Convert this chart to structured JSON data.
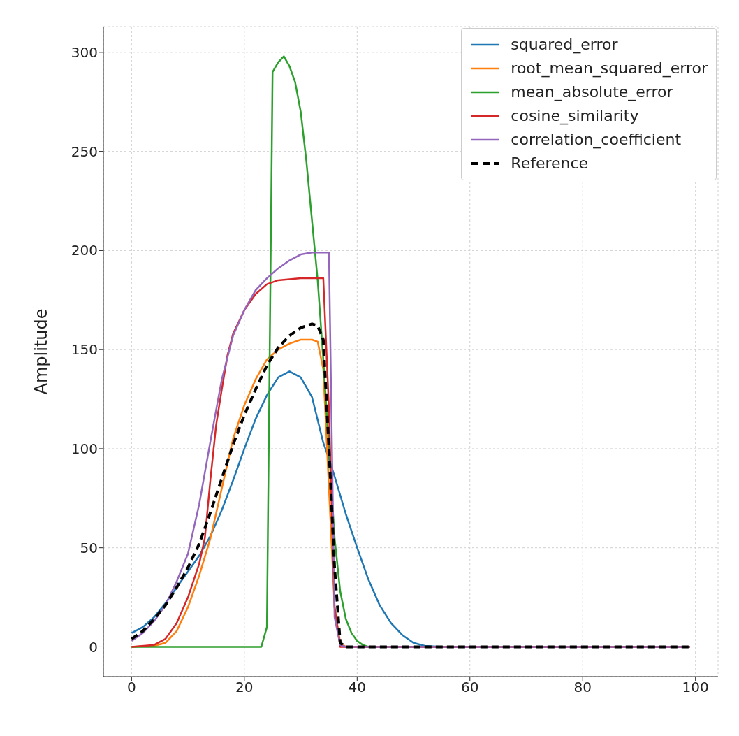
{
  "chart_data": {
    "type": "line",
    "ylabel": "Amplitude",
    "xlim": [
      -5,
      104
    ],
    "ylim": [
      -15,
      313
    ],
    "xticks": [
      0,
      20,
      40,
      60,
      80,
      100
    ],
    "yticks": [
      0,
      50,
      100,
      150,
      200,
      250,
      300
    ],
    "grid": true,
    "legend": "top right",
    "marker": "none",
    "series": [
      {
        "name": "squared_error",
        "color": "#1f77b4",
        "line_style": "solid",
        "x": [
          0,
          2,
          4,
          6,
          8,
          10,
          12,
          14,
          16,
          18,
          20,
          22,
          24,
          26,
          28,
          30,
          32,
          34,
          35,
          36,
          38,
          40,
          42,
          44,
          46,
          48,
          50,
          52,
          55,
          99
        ],
        "values": [
          7,
          10,
          15,
          22,
          30,
          38,
          46,
          56,
          69,
          84,
          100,
          115,
          127,
          136,
          139,
          136,
          126,
          103,
          95,
          86,
          67,
          50,
          34,
          21,
          12,
          6,
          2,
          0.5,
          0,
          0
        ]
      },
      {
        "name": "root_mean_squared_error",
        "color": "#ff7f0e",
        "line_style": "solid",
        "x": [
          0,
          4,
          6,
          8,
          10,
          12,
          14,
          16,
          18,
          20,
          22,
          24,
          26,
          28,
          30,
          32,
          33,
          34,
          35,
          36,
          37,
          38,
          99
        ],
        "values": [
          0,
          0.5,
          2,
          8,
          20,
          36,
          55,
          80,
          105,
          122,
          135,
          145,
          150,
          153,
          155,
          155,
          154,
          140,
          80,
          20,
          2,
          0,
          0
        ]
      },
      {
        "name": "mean_absolute_error",
        "color": "#2ca02c",
        "line_style": "solid",
        "x": [
          0,
          23,
          24,
          25,
          26,
          27,
          28,
          29,
          30,
          31,
          32,
          33,
          34,
          35,
          36,
          37,
          38,
          39,
          40,
          41,
          42,
          99
        ],
        "values": [
          0,
          0,
          10,
          290,
          295,
          298,
          293,
          285,
          270,
          245,
          215,
          185,
          145,
          100,
          55,
          28,
          14,
          7,
          3,
          1,
          0,
          0
        ]
      },
      {
        "name": "cosine_similarity",
        "color": "#d62728",
        "line_style": "solid",
        "x": [
          0,
          4,
          6,
          8,
          10,
          12,
          13,
          14,
          15,
          16,
          17,
          18,
          20,
          22,
          24,
          26,
          30,
          34,
          35,
          36,
          37,
          99
        ],
        "values": [
          0,
          1,
          4,
          12,
          25,
          42,
          55,
          85,
          112,
          130,
          147,
          158,
          170,
          178,
          183,
          185,
          186,
          186,
          120,
          20,
          0,
          0
        ]
      },
      {
        "name": "correlation_coefficient",
        "color": "#9467bd",
        "line_style": "solid",
        "x": [
          0,
          2,
          4,
          6,
          8,
          10,
          12,
          14,
          16,
          18,
          20,
          22,
          24,
          26,
          28,
          30,
          32,
          35,
          36,
          37,
          38,
          99
        ],
        "values": [
          3,
          7,
          13,
          21,
          33,
          47,
          72,
          104,
          135,
          157,
          170,
          180,
          186,
          191,
          195,
          198,
          199,
          199,
          15,
          1,
          0,
          0
        ]
      },
      {
        "name": "Reference",
        "color": "#000000",
        "line_style": "dashed",
        "x": [
          0,
          2,
          4,
          6,
          8,
          10,
          12,
          14,
          16,
          18,
          20,
          22,
          24,
          26,
          28,
          30,
          32,
          33,
          34,
          35,
          36,
          37,
          38,
          99
        ],
        "values": [
          4,
          8,
          14,
          21,
          30,
          40,
          52,
          68,
          85,
          102,
          117,
          130,
          142,
          151,
          157,
          161,
          163,
          162,
          155,
          100,
          40,
          2,
          0,
          0
        ]
      }
    ]
  }
}
